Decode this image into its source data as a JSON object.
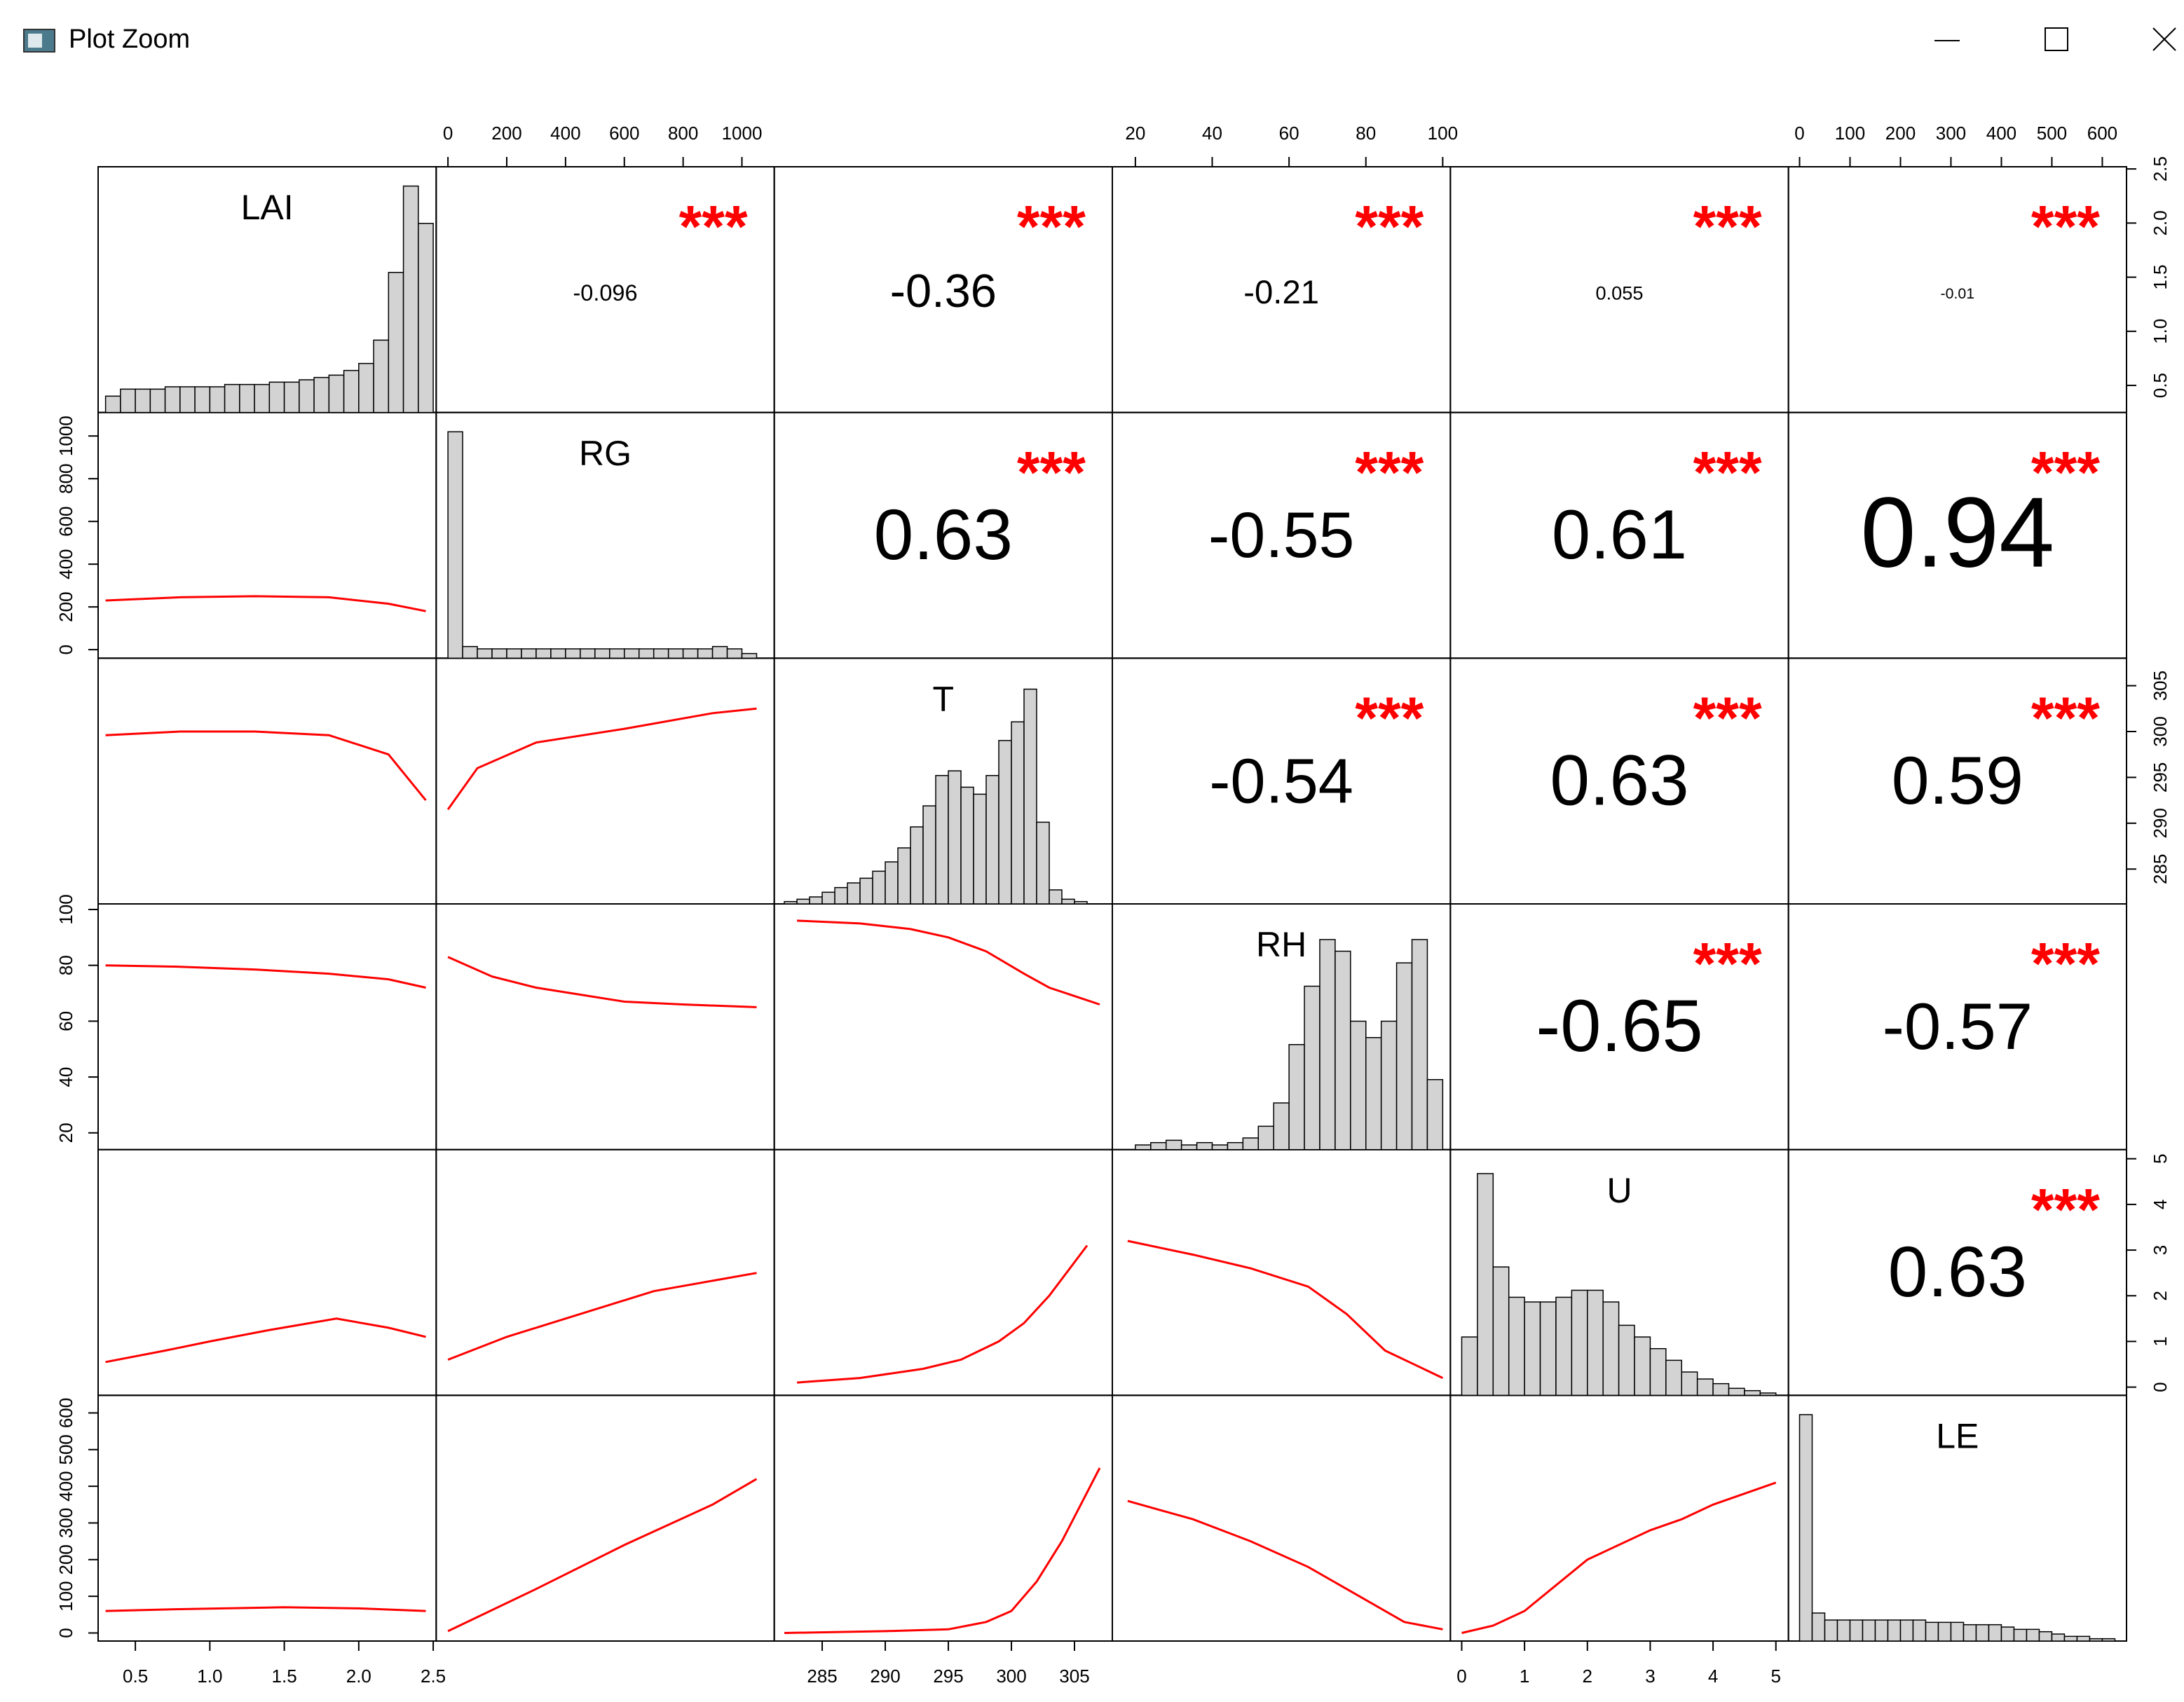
{
  "window_title": "Plot Zoom",
  "chart_data": {
    "type": "scatter-matrix",
    "bar_color": "#d3d3d3",
    "smooth_color": "#ff0000",
    "star_color": "#ff0000",
    "hist_ylim": [
      0,
      100
    ],
    "variables": [
      {
        "name": "LAI",
        "lim": [
          0.25,
          2.52
        ],
        "ticks": [
          0.5,
          {
            "value": 1,
            "label": "1.0"
          },
          1.5,
          {
            "value": 2,
            "label": "2.0"
          },
          2.5
        ],
        "hist": {
          "bins": [
            0.3,
            0.4,
            0.5,
            0.6,
            0.7,
            0.8,
            0.9,
            1.0,
            1.1,
            1.2,
            1.3,
            1.4,
            1.5,
            1.6,
            1.7,
            1.8,
            1.9,
            2.0,
            2.1,
            2.2,
            2.3,
            2.4,
            2.5
          ],
          "counts": [
            7,
            10,
            10,
            10,
            11,
            11,
            11,
            11,
            12,
            12,
            12,
            13,
            13,
            14,
            15,
            16,
            18,
            21,
            31,
            60,
            97,
            81
          ]
        }
      },
      {
        "name": "RG",
        "lim": [
          -40,
          1110
        ],
        "ticks": [
          0,
          200,
          400,
          600,
          800,
          1000
        ],
        "hist": {
          "bins": [
            0,
            50,
            100,
            150,
            200,
            250,
            300,
            350,
            400,
            450,
            500,
            550,
            600,
            650,
            700,
            750,
            800,
            850,
            900,
            950,
            1000,
            1050
          ],
          "counts": [
            97,
            5,
            4,
            4,
            4,
            4,
            4,
            4,
            4,
            4,
            4,
            4,
            4,
            4,
            4,
            4,
            4,
            4,
            5,
            4,
            2
          ]
        }
      },
      {
        "name": "T",
        "lim": [
          281.2,
          308
        ],
        "ticks": [
          285,
          290,
          295,
          300,
          305
        ],
        "hist": {
          "bins": [
            282,
            283,
            284,
            285,
            286,
            287,
            288,
            289,
            290,
            291,
            292,
            293,
            294,
            295,
            296,
            297,
            298,
            299,
            300,
            301,
            302,
            303,
            304,
            305,
            306
          ],
          "counts": [
            1,
            2,
            3,
            5,
            7,
            9,
            11,
            14,
            18,
            24,
            33,
            42,
            55,
            57,
            50,
            47,
            55,
            70,
            78,
            92,
            35,
            6,
            2,
            1
          ]
        }
      },
      {
        "name": "RH",
        "lim": [
          14,
          102
        ],
        "ticks": [
          20,
          40,
          60,
          80,
          100
        ],
        "hist": {
          "bins": [
            20,
            24,
            28,
            32,
            36,
            40,
            44,
            48,
            52,
            56,
            60,
            64,
            68,
            72,
            76,
            80,
            84,
            88,
            92,
            96,
            100
          ],
          "counts": [
            2,
            3,
            4,
            2,
            3,
            2,
            3,
            5,
            10,
            20,
            45,
            70,
            90,
            85,
            55,
            48,
            55,
            80,
            90,
            30
          ]
        }
      },
      {
        "name": "U",
        "lim": [
          -0.18,
          5.2
        ],
        "ticks": [
          0,
          1,
          2,
          3,
          4,
          5
        ],
        "hist": {
          "bins": [
            0,
            0.25,
            0.5,
            0.75,
            1,
            1.25,
            1.5,
            1.75,
            2,
            2.25,
            2.5,
            2.75,
            3,
            3.25,
            3.5,
            3.75,
            4,
            4.25,
            4.5,
            4.75,
            5
          ],
          "counts": [
            25,
            95,
            55,
            42,
            40,
            40,
            42,
            45,
            45,
            40,
            30,
            25,
            20,
            15,
            10,
            7,
            5,
            3,
            2,
            1
          ]
        }
      },
      {
        "name": "LE",
        "lim": [
          -22,
          648
        ],
        "ticks": [
          0,
          100,
          200,
          300,
          400,
          500,
          600
        ],
        "hist": {
          "bins": [
            0,
            25,
            50,
            75,
            100,
            125,
            150,
            175,
            200,
            225,
            250,
            275,
            300,
            325,
            350,
            375,
            400,
            425,
            450,
            475,
            500,
            525,
            550,
            575,
            600,
            625
          ],
          "counts": [
            97,
            12,
            9,
            9,
            9,
            9,
            9,
            9,
            9,
            9,
            8,
            8,
            8,
            7,
            7,
            7,
            6,
            5,
            5,
            4,
            3,
            2,
            2,
            1,
            1
          ]
        }
      }
    ],
    "correlations": [
      [
        -0.096,
        -0.36,
        -0.21,
        0.055,
        -0.01
      ],
      [
        0.63,
        -0.55,
        0.61,
        0.94
      ],
      [
        -0.54,
        0.63,
        0.59
      ],
      [
        -0.65,
        -0.57
      ],
      [
        0.63
      ]
    ],
    "significance": [
      [
        "***",
        "***",
        "***",
        "***",
        "***"
      ],
      [
        "***",
        "***",
        "***",
        "***"
      ],
      [
        "***",
        "***",
        "***"
      ],
      [
        "***",
        "***"
      ],
      [
        "***"
      ]
    ],
    "smooths": [
      [
        {
          "x": [
            0.3,
            0.8,
            1.3,
            1.8,
            2.2,
            2.45
          ],
          "y": [
            230,
            245,
            250,
            245,
            215,
            180
          ]
        }
      ],
      [
        {
          "x": [
            0.3,
            0.8,
            1.3,
            1.8,
            2.2,
            2.45
          ],
          "y": [
            299.6,
            300,
            300,
            299.6,
            297.5,
            292.5
          ]
        },
        {
          "x": [
            0,
            100,
            300,
            600,
            900,
            1050
          ],
          "y": [
            291.5,
            296,
            298.8,
            300.3,
            302,
            302.5
          ]
        }
      ],
      [
        {
          "x": [
            0.3,
            0.8,
            1.3,
            1.8,
            2.2,
            2.45
          ],
          "y": [
            80,
            79.5,
            78.5,
            77,
            75,
            72
          ]
        },
        {
          "x": [
            0,
            150,
            300,
            600,
            800,
            1050
          ],
          "y": [
            83,
            76,
            72,
            67,
            66,
            65
          ]
        },
        {
          "x": [
            283,
            288,
            292,
            295,
            298,
            301,
            303,
            307
          ],
          "y": [
            96,
            95,
            93,
            90,
            85,
            77,
            72,
            66
          ]
        }
      ],
      [
        {
          "x": [
            0.3,
            0.7,
            1.0,
            1.4,
            1.85,
            2.2,
            2.45
          ],
          "y": [
            0.55,
            0.8,
            1.0,
            1.25,
            1.5,
            1.3,
            1.1
          ]
        },
        {
          "x": [
            0,
            200,
            400,
            700,
            1050
          ],
          "y": [
            0.6,
            1.1,
            1.5,
            2.1,
            2.5
          ]
        },
        {
          "x": [
            283,
            288,
            293,
            296,
            299,
            301,
            303,
            306
          ],
          "y": [
            0.1,
            0.2,
            0.4,
            0.6,
            1.0,
            1.4,
            2.0,
            3.1
          ]
        },
        {
          "x": [
            18,
            35,
            50,
            65,
            75,
            85,
            100
          ],
          "y": [
            3.2,
            2.9,
            2.6,
            2.2,
            1.6,
            0.8,
            0.2
          ]
        }
      ],
      [
        {
          "x": [
            0.3,
            0.8,
            1.5,
            2.0,
            2.45
          ],
          "y": [
            60,
            65,
            70,
            67,
            60
          ]
        },
        {
          "x": [
            0,
            300,
            600,
            900,
            1050
          ],
          "y": [
            5,
            120,
            240,
            350,
            420
          ]
        },
        {
          "x": [
            282,
            290,
            295,
            298,
            300,
            302,
            304,
            307
          ],
          "y": [
            0,
            5,
            10,
            30,
            60,
            140,
            250,
            450
          ]
        },
        {
          "x": [
            18,
            35,
            50,
            65,
            75,
            90,
            100
          ],
          "y": [
            360,
            310,
            250,
            180,
            120,
            30,
            10
          ]
        },
        {
          "x": [
            0,
            0.5,
            1,
            2,
            3,
            3.5,
            4,
            5
          ],
          "y": [
            0,
            20,
            60,
            200,
            280,
            310,
            350,
            410
          ]
        }
      ]
    ]
  }
}
